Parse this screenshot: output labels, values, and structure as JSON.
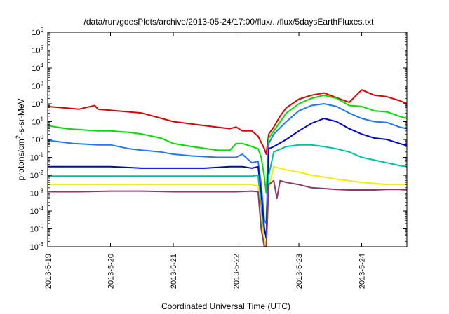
{
  "chart_data": {
    "type": "line",
    "title": "/data/run/goesPlots/archive/2013-05-24/17:00/flux/../flux/5daysEarthFluxes.txt",
    "xlabel": "Coordinated Universal Time (UTC)",
    "ylabel_parts": {
      "pre": "protons/cm",
      "sup": "2",
      "post": "-s-sr-MeV"
    },
    "x_tick_labels": [
      "2013-5-19",
      "2013-5-20",
      "2013-5-21",
      "2013-5-22",
      "2013-5-23",
      "2013-5-24"
    ],
    "x_ticks_day": [
      0,
      1,
      2,
      3,
      4,
      5
    ],
    "xlim_day": [
      0,
      5.72
    ],
    "yscale": "log",
    "ylim": [
      1e-06,
      1000000.0
    ],
    "y_ticks_exp": [
      -6,
      -5,
      -4,
      -3,
      -2,
      -1,
      0,
      1,
      2,
      3,
      4,
      5,
      6
    ],
    "y_tick_base": "10",
    "grid": false,
    "legend": "none",
    "x_note": "x values are days since 2013-5-19 00:00 UTC",
    "series": [
      {
        "color": "#e00000",
        "points": [
          [
            0,
            70
          ],
          [
            0.5,
            50
          ],
          [
            0.75,
            80
          ],
          [
            0.8,
            50
          ],
          [
            1.5,
            30
          ],
          [
            2.0,
            10
          ],
          [
            2.5,
            6
          ],
          [
            2.9,
            4
          ],
          [
            3.0,
            5
          ],
          [
            3.1,
            3
          ],
          [
            3.25,
            3
          ],
          [
            3.35,
            1.5
          ],
          [
            3.45,
            0.3
          ],
          [
            3.48,
            0.15
          ],
          [
            3.52,
            2
          ],
          [
            3.6,
            5
          ],
          [
            3.7,
            20
          ],
          [
            3.8,
            60
          ],
          [
            4.0,
            180
          ],
          [
            4.2,
            300
          ],
          [
            4.4,
            400
          ],
          [
            4.6,
            220
          ],
          [
            4.8,
            120
          ],
          [
            5.0,
            600
          ],
          [
            5.2,
            300
          ],
          [
            5.4,
            250
          ],
          [
            5.6,
            150
          ],
          [
            5.72,
            100
          ]
        ]
      },
      {
        "color": "#00e000",
        "points": [
          [
            0,
            6
          ],
          [
            0.3,
            4
          ],
          [
            0.8,
            3
          ],
          [
            1.0,
            3
          ],
          [
            1.3,
            2.5
          ],
          [
            1.5,
            2
          ],
          [
            1.8,
            1.2
          ],
          [
            2.0,
            0.6
          ],
          [
            2.3,
            0.4
          ],
          [
            2.7,
            0.25
          ],
          [
            2.9,
            0.25
          ],
          [
            3.0,
            0.6
          ],
          [
            3.1,
            0.6
          ],
          [
            3.25,
            0.4
          ],
          [
            3.35,
            0.3
          ],
          [
            3.4,
            0.1
          ],
          [
            3.45,
            0.008
          ],
          [
            3.48,
            0.001
          ],
          [
            3.52,
            1.2
          ],
          [
            3.6,
            3
          ],
          [
            3.8,
            30
          ],
          [
            4.0,
            100
          ],
          [
            4.2,
            200
          ],
          [
            4.4,
            300
          ],
          [
            4.6,
            200
          ],
          [
            4.8,
            80
          ],
          [
            5.0,
            70
          ],
          [
            5.2,
            40
          ],
          [
            5.4,
            35
          ],
          [
            5.6,
            20
          ],
          [
            5.72,
            15
          ]
        ]
      },
      {
        "color": "#1e78ff",
        "points": [
          [
            0,
            0.9
          ],
          [
            0.4,
            0.6
          ],
          [
            0.8,
            0.5
          ],
          [
            1.0,
            0.5
          ],
          [
            1.3,
            0.3
          ],
          [
            1.5,
            0.25
          ],
          [
            1.8,
            0.2
          ],
          [
            2.0,
            0.15
          ],
          [
            2.3,
            0.12
          ],
          [
            2.7,
            0.1
          ],
          [
            2.9,
            0.1
          ],
          [
            3.0,
            0.1
          ],
          [
            3.1,
            0.15
          ],
          [
            3.25,
            0.05
          ],
          [
            3.35,
            0.06
          ],
          [
            3.4,
            0.003
          ],
          [
            3.45,
            3e-05
          ],
          [
            3.48,
            2e-05
          ],
          [
            3.52,
            0.6
          ],
          [
            3.6,
            2
          ],
          [
            3.8,
            10
          ],
          [
            4.0,
            40
          ],
          [
            4.2,
            80
          ],
          [
            4.4,
            100
          ],
          [
            4.6,
            70
          ],
          [
            4.8,
            30
          ],
          [
            5.0,
            15
          ],
          [
            5.2,
            10
          ],
          [
            5.4,
            9
          ],
          [
            5.6,
            5
          ],
          [
            5.72,
            4
          ]
        ]
      },
      {
        "color": "#0000e6",
        "points": [
          [
            0,
            0.03
          ],
          [
            0.5,
            0.03
          ],
          [
            1.0,
            0.03
          ],
          [
            1.5,
            0.025
          ],
          [
            2.0,
            0.025
          ],
          [
            2.5,
            0.025
          ],
          [
            2.9,
            0.03
          ],
          [
            3.1,
            0.03
          ],
          [
            3.25,
            0.025
          ],
          [
            3.35,
            0.03
          ],
          [
            3.4,
            0.001
          ],
          [
            3.45,
            1e-05
          ],
          [
            3.48,
            3e-06
          ],
          [
            3.52,
            0.3
          ],
          [
            3.6,
            0.4
          ],
          [
            3.8,
            1
          ],
          [
            4.0,
            3
          ],
          [
            4.2,
            8
          ],
          [
            4.4,
            15
          ],
          [
            4.6,
            10
          ],
          [
            4.8,
            4
          ],
          [
            5.0,
            2
          ],
          [
            5.2,
            1.2
          ],
          [
            5.4,
            1
          ],
          [
            5.6,
            0.6
          ],
          [
            5.72,
            0.45
          ]
        ]
      },
      {
        "color": "#00c0a0",
        "points": [
          [
            0,
            0.009
          ],
          [
            0.5,
            0.009
          ],
          [
            1.0,
            0.009
          ],
          [
            1.5,
            0.009
          ],
          [
            2.0,
            0.009
          ],
          [
            2.5,
            0.009
          ],
          [
            3.0,
            0.009
          ],
          [
            3.25,
            0.009
          ],
          [
            3.35,
            0.01
          ],
          [
            3.4,
            0.0001
          ],
          [
            3.45,
            2e-06
          ],
          [
            3.48,
            1e-06
          ],
          [
            3.52,
            0.01
          ],
          [
            3.6,
            0.2
          ],
          [
            3.8,
            0.4
          ],
          [
            4.0,
            0.5
          ],
          [
            4.2,
            0.5
          ],
          [
            4.4,
            0.4
          ],
          [
            4.6,
            0.3
          ],
          [
            4.8,
            0.2
          ],
          [
            5.0,
            0.1
          ],
          [
            5.2,
            0.07
          ],
          [
            5.4,
            0.05
          ],
          [
            5.6,
            0.035
          ],
          [
            5.72,
            0.03
          ]
        ]
      },
      {
        "color": "#f0f000",
        "points": [
          [
            0,
            0.003
          ],
          [
            0.5,
            0.003
          ],
          [
            1.0,
            0.003
          ],
          [
            1.5,
            0.003
          ],
          [
            2.0,
            0.003
          ],
          [
            2.5,
            0.003
          ],
          [
            3.0,
            0.003
          ],
          [
            3.25,
            0.003
          ],
          [
            3.35,
            0.0025
          ],
          [
            3.4,
            3e-05
          ],
          [
            3.45,
            2e-06
          ],
          [
            3.48,
            1e-06
          ],
          [
            3.52,
            0.002
          ],
          [
            3.6,
            0.03
          ],
          [
            3.8,
            0.02
          ],
          [
            4.0,
            0.015
          ],
          [
            4.2,
            0.01
          ],
          [
            4.4,
            0.008
          ],
          [
            4.6,
            0.006
          ],
          [
            4.8,
            0.005
          ],
          [
            5.0,
            0.004
          ],
          [
            5.2,
            0.0035
          ],
          [
            5.4,
            0.003
          ],
          [
            5.6,
            0.003
          ],
          [
            5.72,
            0.003
          ]
        ]
      },
      {
        "color": "#8b3a6b",
        "points": [
          [
            0,
            0.0012
          ],
          [
            0.5,
            0.0012
          ],
          [
            1.0,
            0.0013
          ],
          [
            1.5,
            0.0013
          ],
          [
            2.0,
            0.0012
          ],
          [
            2.5,
            0.0012
          ],
          [
            3.0,
            0.0012
          ],
          [
            3.25,
            0.0013
          ],
          [
            3.35,
            0.0012
          ],
          [
            3.4,
            1e-05
          ],
          [
            3.45,
            1e-06
          ],
          [
            3.48,
            1e-06
          ],
          [
            3.52,
            0.003
          ],
          [
            3.6,
            0.005
          ],
          [
            3.65,
            0.0005
          ],
          [
            3.7,
            0.005
          ],
          [
            3.8,
            0.004
          ],
          [
            4.0,
            0.003
          ],
          [
            4.2,
            0.002
          ],
          [
            4.4,
            0.0018
          ],
          [
            4.6,
            0.0016
          ],
          [
            4.8,
            0.0015
          ],
          [
            5.0,
            0.0015
          ],
          [
            5.2,
            0.0015
          ],
          [
            5.4,
            0.0016
          ],
          [
            5.6,
            0.0016
          ],
          [
            5.72,
            0.0015
          ]
        ]
      }
    ]
  }
}
